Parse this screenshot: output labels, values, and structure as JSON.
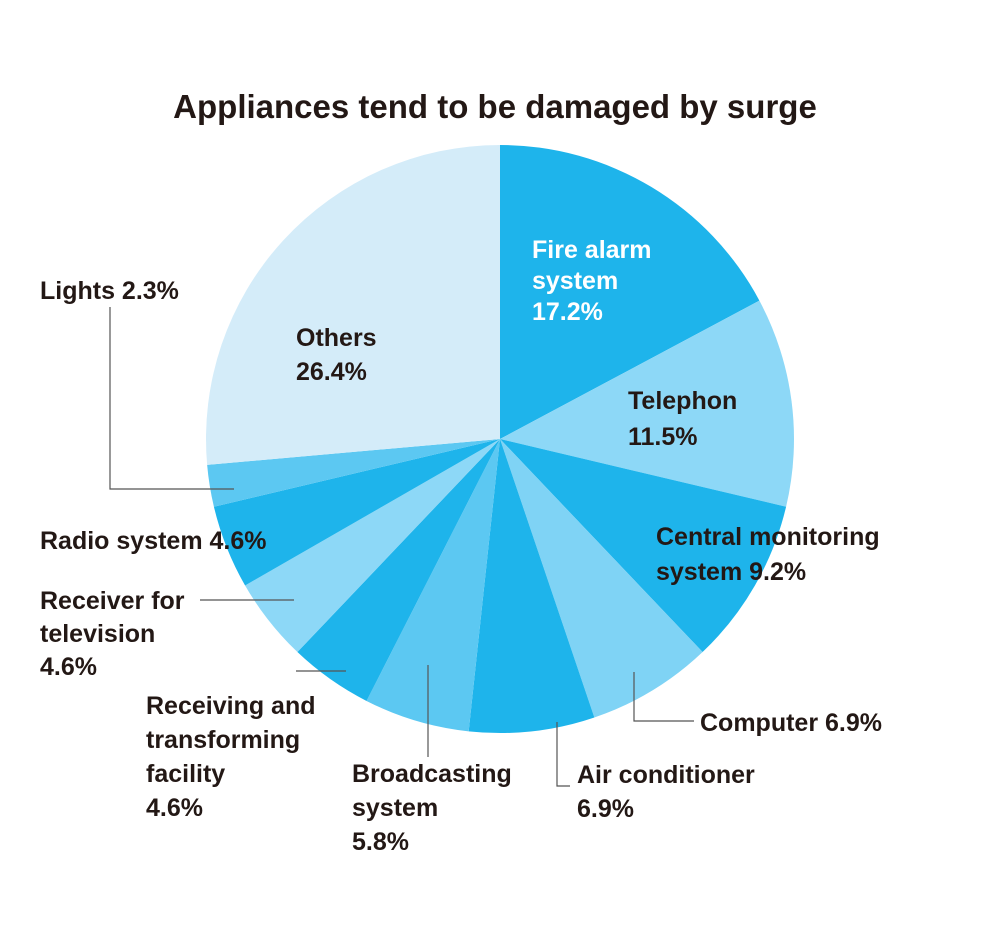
{
  "chart_data": {
    "type": "pie",
    "title": "Appliances tend to be damaged by surge",
    "slices": [
      {
        "label": "Fire alarm system",
        "value": 17.2,
        "text_lines": [
          "Fire alarm",
          "system",
          "17.2%"
        ],
        "color": "#1EB4EB",
        "text_color": "#FFFFFF"
      },
      {
        "label": "Telephon",
        "value": 11.5,
        "text_lines": [
          "Telephon",
          "11.5%"
        ],
        "color": "#8DD8F7",
        "text_color": "#231815"
      },
      {
        "label": "Central monitoring system",
        "value": 9.2,
        "text_lines": [
          "Central monitoring",
          "system 9.2%"
        ],
        "color": "#1EB4EB",
        "text_color": "#231815"
      },
      {
        "label": "Computer",
        "value": 6.9,
        "text_lines": [
          "Computer 6.9%"
        ],
        "color": "#7FD3F5",
        "text_color": "#231815"
      },
      {
        "label": "Air conditioner",
        "value": 6.9,
        "text_lines": [
          "Air conditioner",
          "6.9%"
        ],
        "color": "#1EB4EB",
        "text_color": "#231815"
      },
      {
        "label": "Broadcasting system",
        "value": 5.8,
        "text_lines": [
          "Broadcasting",
          "system",
          "5.8%"
        ],
        "color": "#5CC8F2",
        "text_color": "#231815"
      },
      {
        "label": "Receiving and transforming facility",
        "value": 4.6,
        "text_lines": [
          "Receiving and",
          "transforming",
          "facility",
          "4.6%"
        ],
        "color": "#1EB4EB",
        "text_color": "#231815"
      },
      {
        "label": "Receiver for television",
        "value": 4.6,
        "text_lines": [
          "Receiver for",
          "television",
          "4.6%"
        ],
        "color": "#8DD8F7",
        "text_color": "#231815"
      },
      {
        "label": "Radio system",
        "value": 4.6,
        "text_lines": [
          "Radio system 4.6%"
        ],
        "color": "#1EB4EB",
        "text_color": "#231815"
      },
      {
        "label": "Lights",
        "value": 2.3,
        "text_lines": [
          "Lights 2.3%"
        ],
        "color": "#5CC8F2",
        "text_color": "#231815"
      },
      {
        "label": "Others",
        "value": 26.4,
        "text_lines": [
          "Others",
          "26.4%"
        ],
        "color": "#D4ECF9",
        "text_color": "#231815"
      }
    ],
    "legend": "none"
  }
}
